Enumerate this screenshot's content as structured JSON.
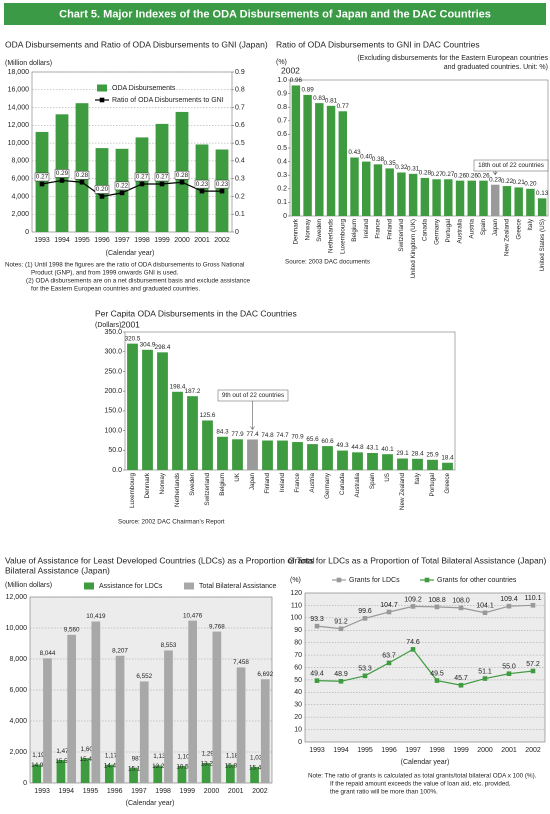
{
  "title": "Chart 5. Major Indexes of the ODA Disbursements of Japan and the DAC Countries",
  "chart_data": [
    {
      "type": "combo",
      "title": "ODA Disbursements and Ratio of ODA Disbursements to GNI (Japan)",
      "y_label": "(Million dollars)",
      "x_label": "(Calendar year)",
      "categories": [
        "1993",
        "1994",
        "1995",
        "1996",
        "1997",
        "1998",
        "1999",
        "2000",
        "2001",
        "2002"
      ],
      "series": [
        {
          "name": "ODA Disbursements",
          "color": "#3f9b3f",
          "values": [
            11259,
            13239,
            14489,
            9439,
            9358,
            10640,
            12163,
            13508,
            9847,
            9283
          ]
        },
        {
          "name": "Ratio of ODA Disbursements to GNI",
          "color": "#000000",
          "axis": "y2",
          "values": [
            0.27,
            0.29,
            0.28,
            0.2,
            0.22,
            0.27,
            0.27,
            0.28,
            0.23,
            0.23
          ],
          "value_labels": [
            "0.27",
            "0.29",
            "0.28",
            "0.20",
            "0.22",
            "0.27",
            "0.27",
            "0.28",
            "0.23",
            "0.23"
          ]
        }
      ],
      "ylim": [
        0,
        18000
      ],
      "yticks": [
        0,
        {
          "value": 2000,
          "label": "2,000"
        },
        {
          "value": 4000,
          "label": "4,000"
        },
        {
          "value": 6000,
          "label": "6,000"
        },
        {
          "value": 8000,
          "label": "8,000"
        },
        {
          "value": 10000,
          "label": "10,000"
        },
        {
          "value": 12000,
          "label": "12,000"
        },
        {
          "value": 14000,
          "label": "14,000"
        },
        {
          "value": 16000,
          "label": "16,000"
        },
        {
          "value": 18000,
          "label": "18,000"
        }
      ],
      "y2lim": [
        0,
        0.9
      ],
      "y2ticks": [
        0,
        0.1,
        0.2,
        0.3,
        0.4,
        0.5,
        0.6,
        0.7,
        0.8,
        0.9
      ],
      "grid": true,
      "notes": [
        "Notes: (1) Until 1998 the figures are the ratio of ODA disbursements to Gross National",
        "Product (GNP), and from 1999 onwards GNI is used.",
        "(2) ODA disbursements are on a net disbursement basis and exclude assistance",
        "for the Eastern European countries and graduated countries."
      ]
    },
    {
      "type": "bar",
      "title": "Ratio of ODA Disbursements to GNI in DAC Countries",
      "subtitle": [
        "(Excluding disbursements for the Eastern European countries",
        "and graduated countries. Unit: %)"
      ],
      "y_label": "(%)",
      "period": "2002",
      "annotation": "18th out of 22 countries",
      "source": "Source: 2003 DAC documents",
      "categories": [
        "Denmark",
        "Norway",
        "Sweden",
        "Netherlands",
        "Luxembourg",
        "Belgium",
        "Ireland",
        "France",
        "Finland",
        "Switzerland",
        "United Kingdom (UK)",
        "Canada",
        "Germany",
        "Portugal",
        "Australia",
        "Austria",
        "Spain",
        "Japan",
        "New Zealand",
        "Greece",
        "Italy",
        "United States (US)"
      ],
      "values": [
        0.96,
        0.89,
        0.83,
        0.81,
        0.77,
        0.43,
        0.4,
        0.38,
        0.35,
        0.32,
        0.31,
        0.28,
        0.27,
        0.27,
        0.26,
        0.26,
        0.26,
        0.23,
        0.22,
        0.21,
        0.2,
        0.13
      ],
      "value_labels": [
        "0.96",
        "0.89",
        "0.83",
        "0.81",
        "0.77",
        "0.43",
        "0.40",
        "0.38",
        "0.35",
        "0.32",
        "0.31",
        "0.28",
        "0.27",
        "0.27",
        "0.26",
        "0.26",
        "0.26",
        "0.23",
        "0.22",
        "0.21",
        "0.20",
        "0.13"
      ],
      "colors": [
        "#3f9b3f",
        "#3f9b3f",
        "#3f9b3f",
        "#3f9b3f",
        "#3f9b3f",
        "#3f9b3f",
        "#3f9b3f",
        "#3f9b3f",
        "#3f9b3f",
        "#3f9b3f",
        "#3f9b3f",
        "#3f9b3f",
        "#3f9b3f",
        "#3f9b3f",
        "#3f9b3f",
        "#3f9b3f",
        "#3f9b3f",
        "#9a9a9a",
        "#3f9b3f",
        "#3f9b3f",
        "#3f9b3f",
        "#3f9b3f"
      ],
      "ylim": [
        0,
        1
      ],
      "yticks": [
        0,
        0.1,
        0.2,
        0.3,
        0.4,
        0.5,
        0.6,
        0.7,
        0.8,
        0.9,
        {
          "value": 1,
          "label": "1.0"
        }
      ],
      "grid": false
    },
    {
      "type": "bar",
      "title": "Per Capita ODA Disbursements in the DAC Countries",
      "y_label": "(Dollars)",
      "period": "2001",
      "annotation": "9th out of 22 countries",
      "source": "Source: 2002 DAC Chairman's Report",
      "categories": [
        "Luxembourg",
        "Denmark",
        "Norway",
        "Netherlands",
        "Sweden",
        "Switzerland",
        "Belgium",
        "UK",
        "Japan",
        "Finland",
        "Ireland",
        "France",
        "Austria",
        "Germany",
        "Canada",
        "Australia",
        "Spain",
        "US",
        "New Zealand",
        "Italy",
        "Portugal",
        "Greece"
      ],
      "values": [
        320.5,
        304.9,
        298.4,
        198.4,
        187.2,
        125.6,
        84.3,
        77.9,
        77.4,
        74.8,
        74.7,
        70.9,
        65.6,
        60.6,
        49.3,
        44.8,
        43.1,
        40.1,
        29.1,
        28.4,
        25.9,
        18.4
      ],
      "colors": [
        "#3f9b3f",
        "#3f9b3f",
        "#3f9b3f",
        "#3f9b3f",
        "#3f9b3f",
        "#3f9b3f",
        "#3f9b3f",
        "#3f9b3f",
        "#9a9a9a",
        "#3f9b3f",
        "#3f9b3f",
        "#3f9b3f",
        "#3f9b3f",
        "#3f9b3f",
        "#3f9b3f",
        "#3f9b3f",
        "#3f9b3f",
        "#3f9b3f",
        "#3f9b3f",
        "#3f9b3f",
        "#3f9b3f",
        "#3f9b3f"
      ],
      "ylim": [
        0,
        350
      ],
      "yticks": [
        {
          "value": 0,
          "label": "0.0"
        },
        {
          "value": 50,
          "label": "50.0"
        },
        {
          "value": 100,
          "label": "100.0"
        },
        {
          "value": 150,
          "label": "150.0"
        },
        {
          "value": 200,
          "label": "200.0"
        },
        {
          "value": 250,
          "label": "250.0"
        },
        {
          "value": 300,
          "label": "300.0"
        },
        {
          "value": 350,
          "label": "350.0"
        }
      ],
      "grid": false
    },
    {
      "type": "groupbar",
      "title": [
        "Value of Assistance for Least Developed Countries (LDCs) as a Proportion of Total",
        "Bilateral Assistance (Japan)"
      ],
      "y_label": "(Million dollars)",
      "x_label": "(Calendar year)",
      "categories": [
        "1993",
        "1994",
        "1995",
        "1996",
        "1997",
        "1998",
        "1999",
        "2000",
        "2001",
        "2002"
      ],
      "series": [
        {
          "name": "Assistance for LDCs",
          "color": "#3f9b3f",
          "values": [
            1196,
            1478,
            1601,
            1178,
            987,
            1132,
            1100,
            1290,
            1181,
            1031
          ],
          "value_labels": [
            "1,196",
            "1,478",
            "1,601",
            "1,178",
            "987",
            "1,132",
            "1,100",
            "1,290",
            "1,181",
            "1,031"
          ],
          "percent_labels": [
            "14.9%",
            "15.5%",
            "15.4%",
            "14.4%",
            "15.1%",
            "13.2%",
            "10.5%",
            "13.2%",
            "15.8%",
            "15.4%"
          ]
        },
        {
          "name": "Total Bilateral Assistance",
          "color": "#a8a8a8",
          "values": [
            8044,
            9560,
            10419,
            8207,
            6552,
            8553,
            10476,
            9768,
            7458,
            6692
          ],
          "value_labels": [
            "8,044",
            "9,560",
            "10,419",
            "8,207",
            "6,552",
            "8,553",
            "10,476",
            "9,768",
            "7,458",
            "6,692"
          ]
        }
      ],
      "ylim": [
        0,
        12000
      ],
      "yticks": [
        0,
        {
          "value": 2000,
          "label": "2,000"
        },
        {
          "value": 4000,
          "label": "4,000"
        },
        {
          "value": 6000,
          "label": "6,000"
        },
        {
          "value": 8000,
          "label": "8,000"
        },
        {
          "value": 10000,
          "label": "10,000"
        },
        {
          "value": 12000,
          "label": "12,000"
        }
      ],
      "grid": true
    },
    {
      "type": "line",
      "title": "Grants for LDCs as a Proportion of Total Bilateral Assistance (Japan)",
      "y_label": "(%)",
      "x_label": "(Calendar year)",
      "categories": [
        "1993",
        "1994",
        "1995",
        "1996",
        "1997",
        "1998",
        "1999",
        "2000",
        "2001",
        "2002"
      ],
      "series": [
        {
          "name": "Grants for LDCs",
          "color": "#999999",
          "values": [
            93.3,
            91.2,
            99.6,
            104.7,
            109.2,
            108.8,
            108.0,
            104.1,
            109.4,
            110.1
          ],
          "value_labels": [
            "93.3",
            "91.2",
            "99.6",
            "104.7",
            "109.2",
            "108.8",
            "108.0",
            "104.1",
            "109.4",
            "110.1"
          ]
        },
        {
          "name": "Grants for other countries",
          "color": "#3f9b3f",
          "values": [
            49.4,
            48.9,
            53.3,
            63.7,
            74.6,
            49.5,
            45.7,
            51.1,
            55.0,
            57.2
          ],
          "value_labels": [
            "49.4",
            "48.9",
            "53.3",
            "63.7",
            "74.6",
            "49.5",
            "45.7",
            "51.1",
            "55.0",
            "57.2"
          ]
        }
      ],
      "ylim": [
        0,
        120
      ],
      "yticks": [
        0,
        10,
        20,
        30,
        40,
        50,
        60,
        70,
        80,
        90,
        100,
        110,
        120
      ],
      "grid": true,
      "notes": [
        "Note: The ratio of grants is calculated as total grants/total bilateral ODA x 100 (%).",
        "If the repaid amount exceeds the value of loan aid, etc. provided,",
        "the grant ratio will be more than 100%."
      ]
    }
  ]
}
